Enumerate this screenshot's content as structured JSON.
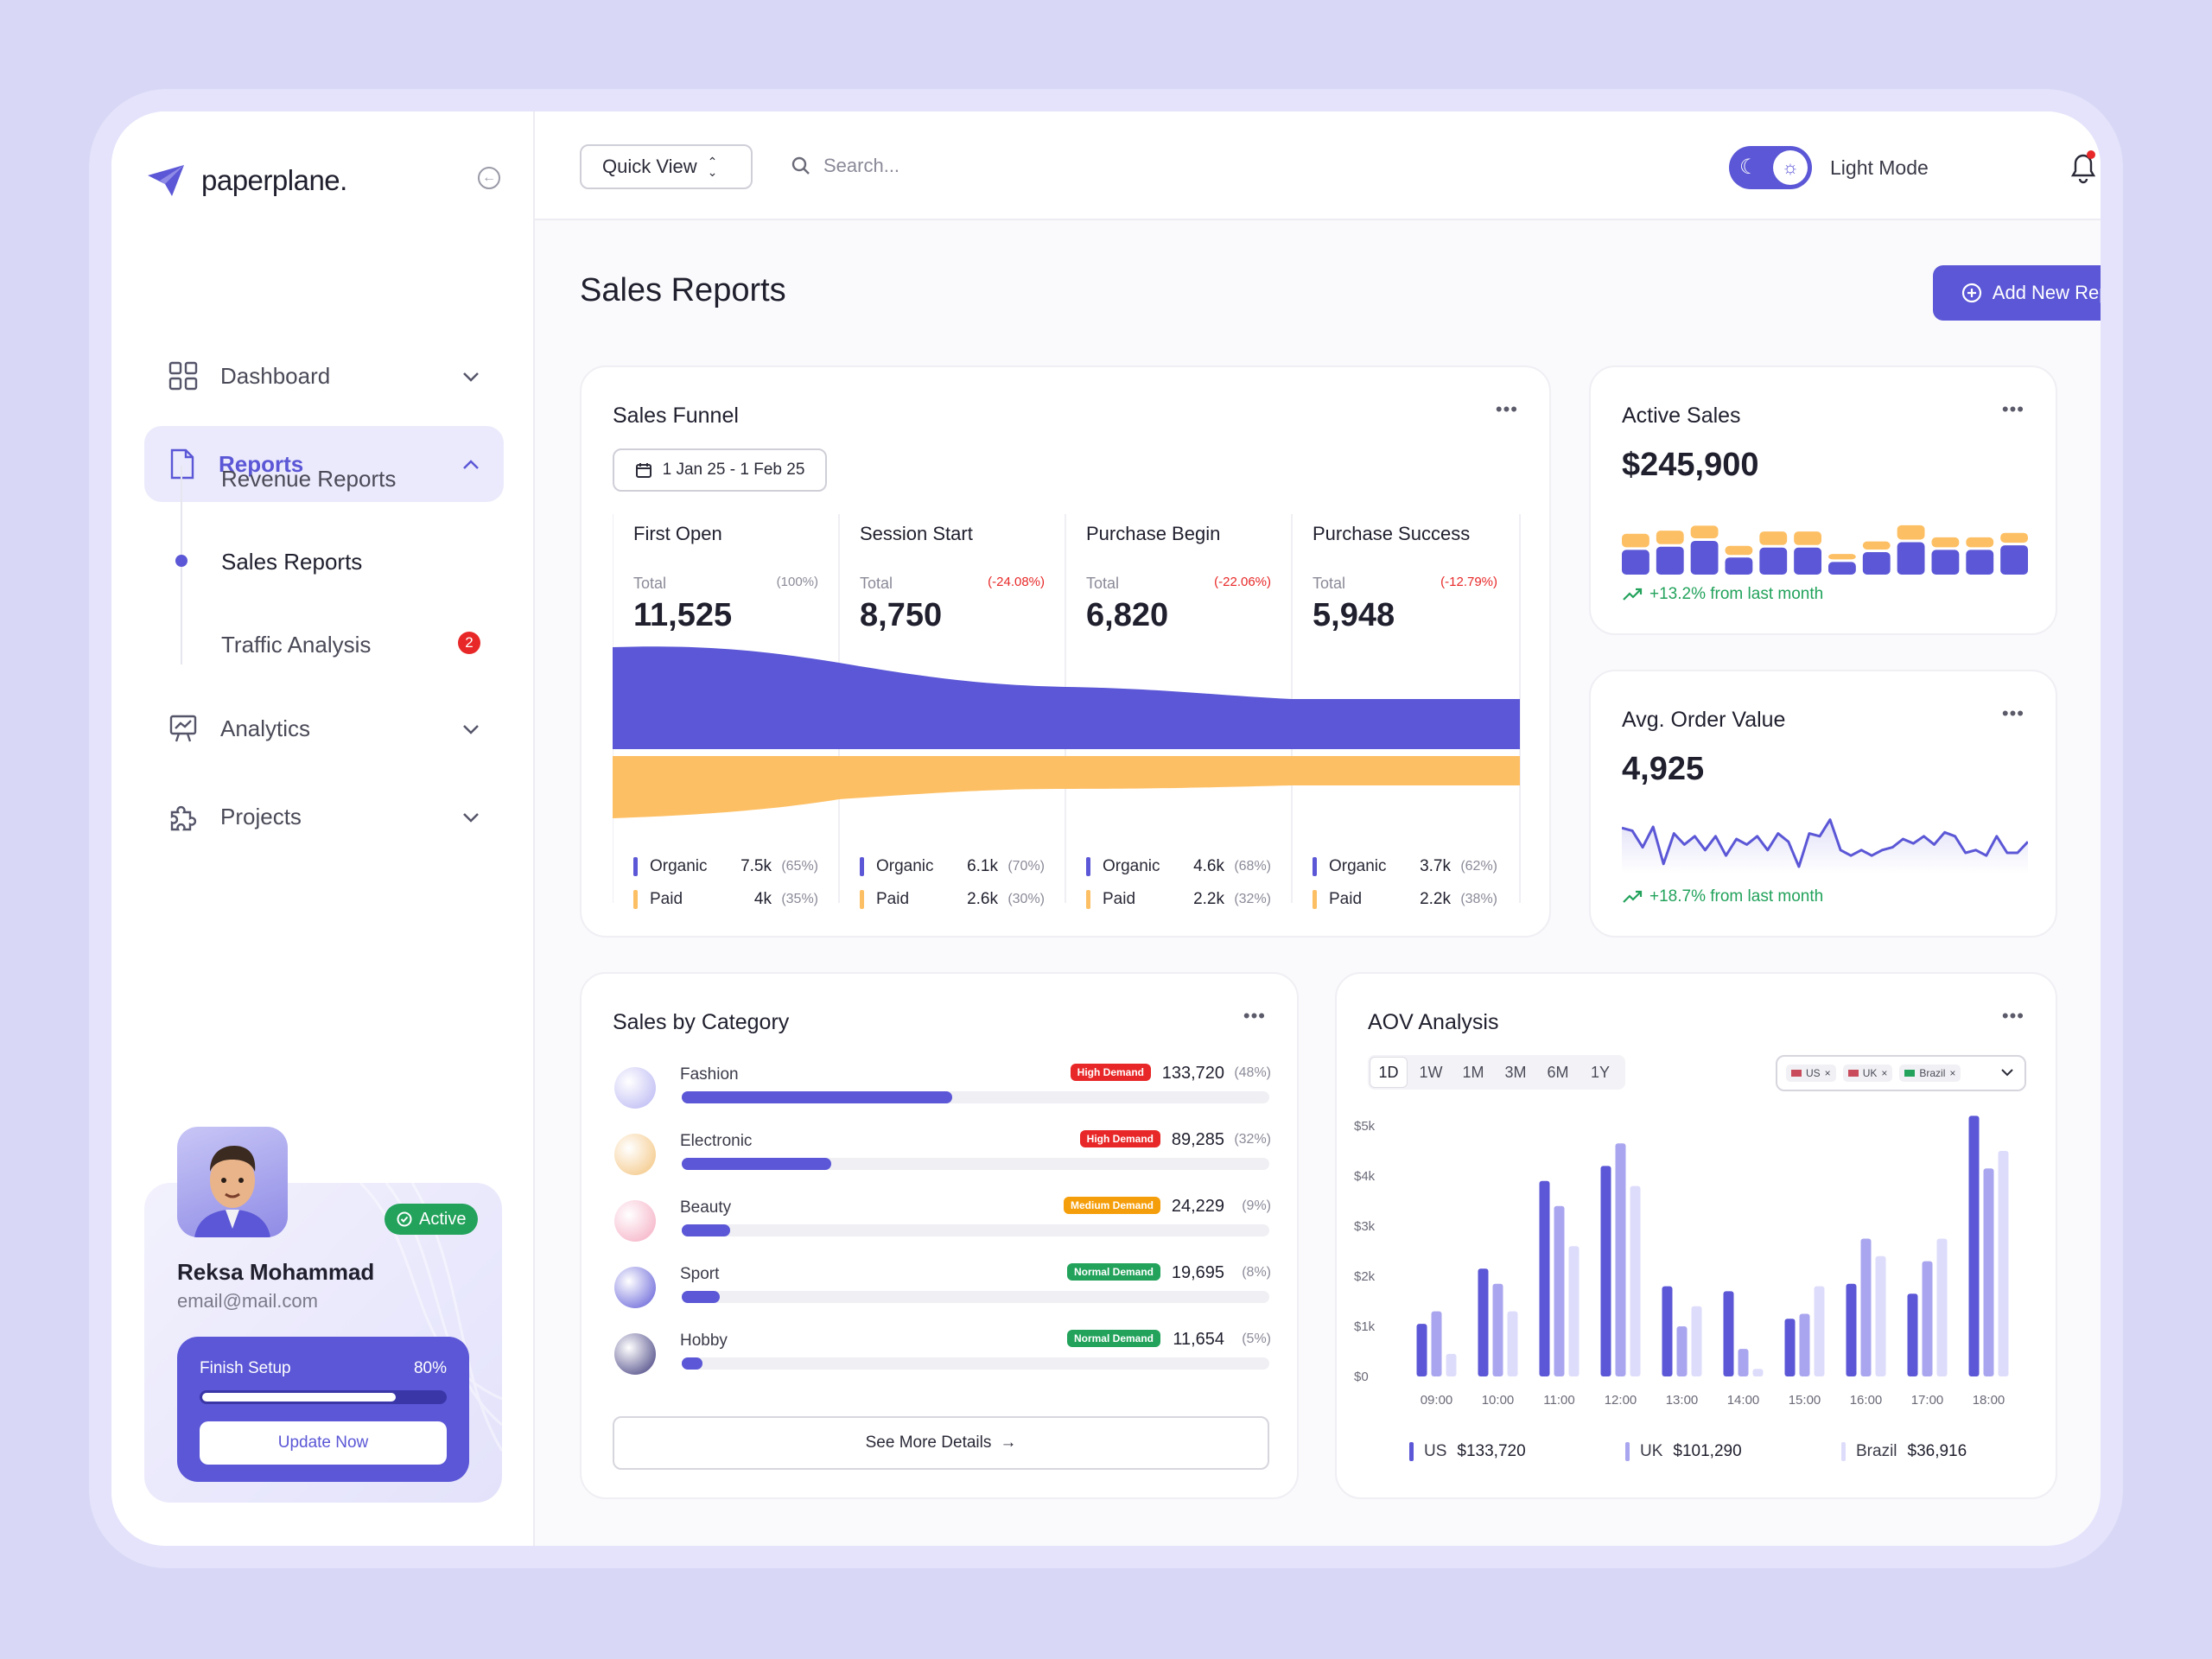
{
  "app": {
    "name": "paperplane."
  },
  "sidebar": {
    "items": [
      {
        "label": "Dashboard"
      },
      {
        "label": "Reports"
      },
      {
        "label": "Analytics"
      },
      {
        "label": "Projects"
      }
    ],
    "sub_items": [
      {
        "label": "Revenue Reports"
      },
      {
        "label": "Sales Reports"
      },
      {
        "label": "Traffic Analysis",
        "badge": "2"
      }
    ]
  },
  "profile": {
    "status": "Active",
    "name": "Reksa Mohammad",
    "email": "email@mail.com",
    "setup_label": "Finish Setup",
    "setup_pct": "80%",
    "setup_progress": 0.8,
    "update_label": "Update Now"
  },
  "topbar": {
    "quick_view": "Quick View",
    "search_placeholder": "Search...",
    "mode_label": "Light Mode"
  },
  "page": {
    "title": "Sales Reports",
    "add_button": "Add New Reports"
  },
  "funnel": {
    "title": "Sales Funnel",
    "date_range": "1 Jan 25 - 1 Feb 25",
    "total_label": "Total",
    "organic_label": "Organic",
    "paid_label": "Paid",
    "stages": [
      {
        "name": "First Open",
        "total": "11,525",
        "pct": "(100%)",
        "organic": "7.5k",
        "organic_pct": "(65%)",
        "paid": "4k",
        "paid_pct": "(35%)"
      },
      {
        "name": "Session Start",
        "total": "8,750",
        "pct": "(-24.08%)",
        "organic": "6.1k",
        "organic_pct": "(70%)",
        "paid": "2.6k",
        "paid_pct": "(30%)"
      },
      {
        "name": "Purchase Begin",
        "total": "6,820",
        "pct": "(-22.06%)",
        "organic": "4.6k",
        "organic_pct": "(68%)",
        "paid": "2.2k",
        "paid_pct": "(32%)"
      },
      {
        "name": "Purchase Success",
        "total": "5,948",
        "pct": "(-12.79%)",
        "organic": "3.7k",
        "organic_pct": "(62%)",
        "paid": "2.2k",
        "paid_pct": "(38%)"
      }
    ]
  },
  "active_sales": {
    "title": "Active Sales",
    "value": "$245,900",
    "change": "+13.2% from last month",
    "bars_purple": [
      0.55,
      0.62,
      0.75,
      0.38,
      0.6,
      0.6,
      0.28,
      0.5,
      0.72,
      0.55,
      0.55,
      0.65
    ],
    "bars_orange": [
      0.3,
      0.3,
      0.28,
      0.2,
      0.3,
      0.3,
      0.12,
      0.18,
      0.32,
      0.22,
      0.22,
      0.22
    ]
  },
  "aov_card": {
    "title": "Avg. Order Value",
    "value": "4,925",
    "change": "+18.7% from last month",
    "line": [
      0.7,
      0.65,
      0.35,
      0.72,
      0.05,
      0.6,
      0.4,
      0.55,
      0.3,
      0.55,
      0.2,
      0.5,
      0.4,
      0.55,
      0.3,
      0.6,
      0.45,
      0.0,
      0.6,
      0.55,
      0.85,
      0.3,
      0.2,
      0.3,
      0.2,
      0.3,
      0.35,
      0.5,
      0.42,
      0.55,
      0.4,
      0.62,
      0.55,
      0.25,
      0.3,
      0.2,
      0.55,
      0.25,
      0.25,
      0.45
    ]
  },
  "category": {
    "title": "Sales by Category",
    "see_more": "See More Details",
    "items": [
      {
        "name": "Fashion",
        "badge": "High Demand",
        "badge_color": "#e82828",
        "value": "133,720",
        "pct": "(48%)",
        "share": 0.46
      },
      {
        "name": "Electronic",
        "badge": "High Demand",
        "badge_color": "#e82828",
        "value": "89,285",
        "pct": "(32%)",
        "share": 0.255
      },
      {
        "name": "Beauty",
        "badge": "Medium Demand",
        "badge_color": "#f59e0b",
        "value": "24,229",
        "pct": "(9%)",
        "share": 0.082
      },
      {
        "name": "Sport",
        "badge": "Normal Demand",
        "badge_color": "#22a25b",
        "value": "19,695",
        "pct": "(8%)",
        "share": 0.065
      },
      {
        "name": "Hobby",
        "badge": "Normal Demand",
        "badge_color": "#22a25b",
        "value": "11,654",
        "pct": "(5%)",
        "share": 0.036
      }
    ]
  },
  "aov_analysis": {
    "title": "AOV Analysis",
    "ranges": [
      "1D",
      "1W",
      "1M",
      "3M",
      "6M",
      "1Y"
    ],
    "selected_range": "1D",
    "filters": [
      "US",
      "UK",
      "Brazil"
    ],
    "legend": [
      {
        "name": "US",
        "value": "$133,720",
        "color": "#5b57d6"
      },
      {
        "name": "UK",
        "value": "$101,290",
        "color": "#a9a6ef"
      },
      {
        "name": "Brazil",
        "value": "$36,916",
        "color": "#dddcfb"
      }
    ]
  },
  "chart_data": {
    "type": "bar",
    "title": "AOV Analysis",
    "categories": [
      "09:00",
      "10:00",
      "11:00",
      "12:00",
      "13:00",
      "14:00",
      "15:00",
      "16:00",
      "17:00",
      "18:00"
    ],
    "y_ticks": [
      "$0",
      "$1k",
      "$2k",
      "$3k",
      "$4k",
      "$5k"
    ],
    "ylim": [
      0,
      5000
    ],
    "series": [
      {
        "name": "US",
        "values": [
          1050,
          2150,
          3900,
          4200,
          1800,
          1700,
          1150,
          1850,
          1650,
          5200
        ]
      },
      {
        "name": "UK",
        "values": [
          1300,
          1850,
          3400,
          4650,
          1000,
          550,
          1250,
          2750,
          2300,
          4150
        ]
      },
      {
        "name": "Brazil",
        "values": [
          450,
          1300,
          2600,
          3800,
          1400,
          150,
          1800,
          2400,
          2750,
          4500
        ]
      }
    ]
  }
}
